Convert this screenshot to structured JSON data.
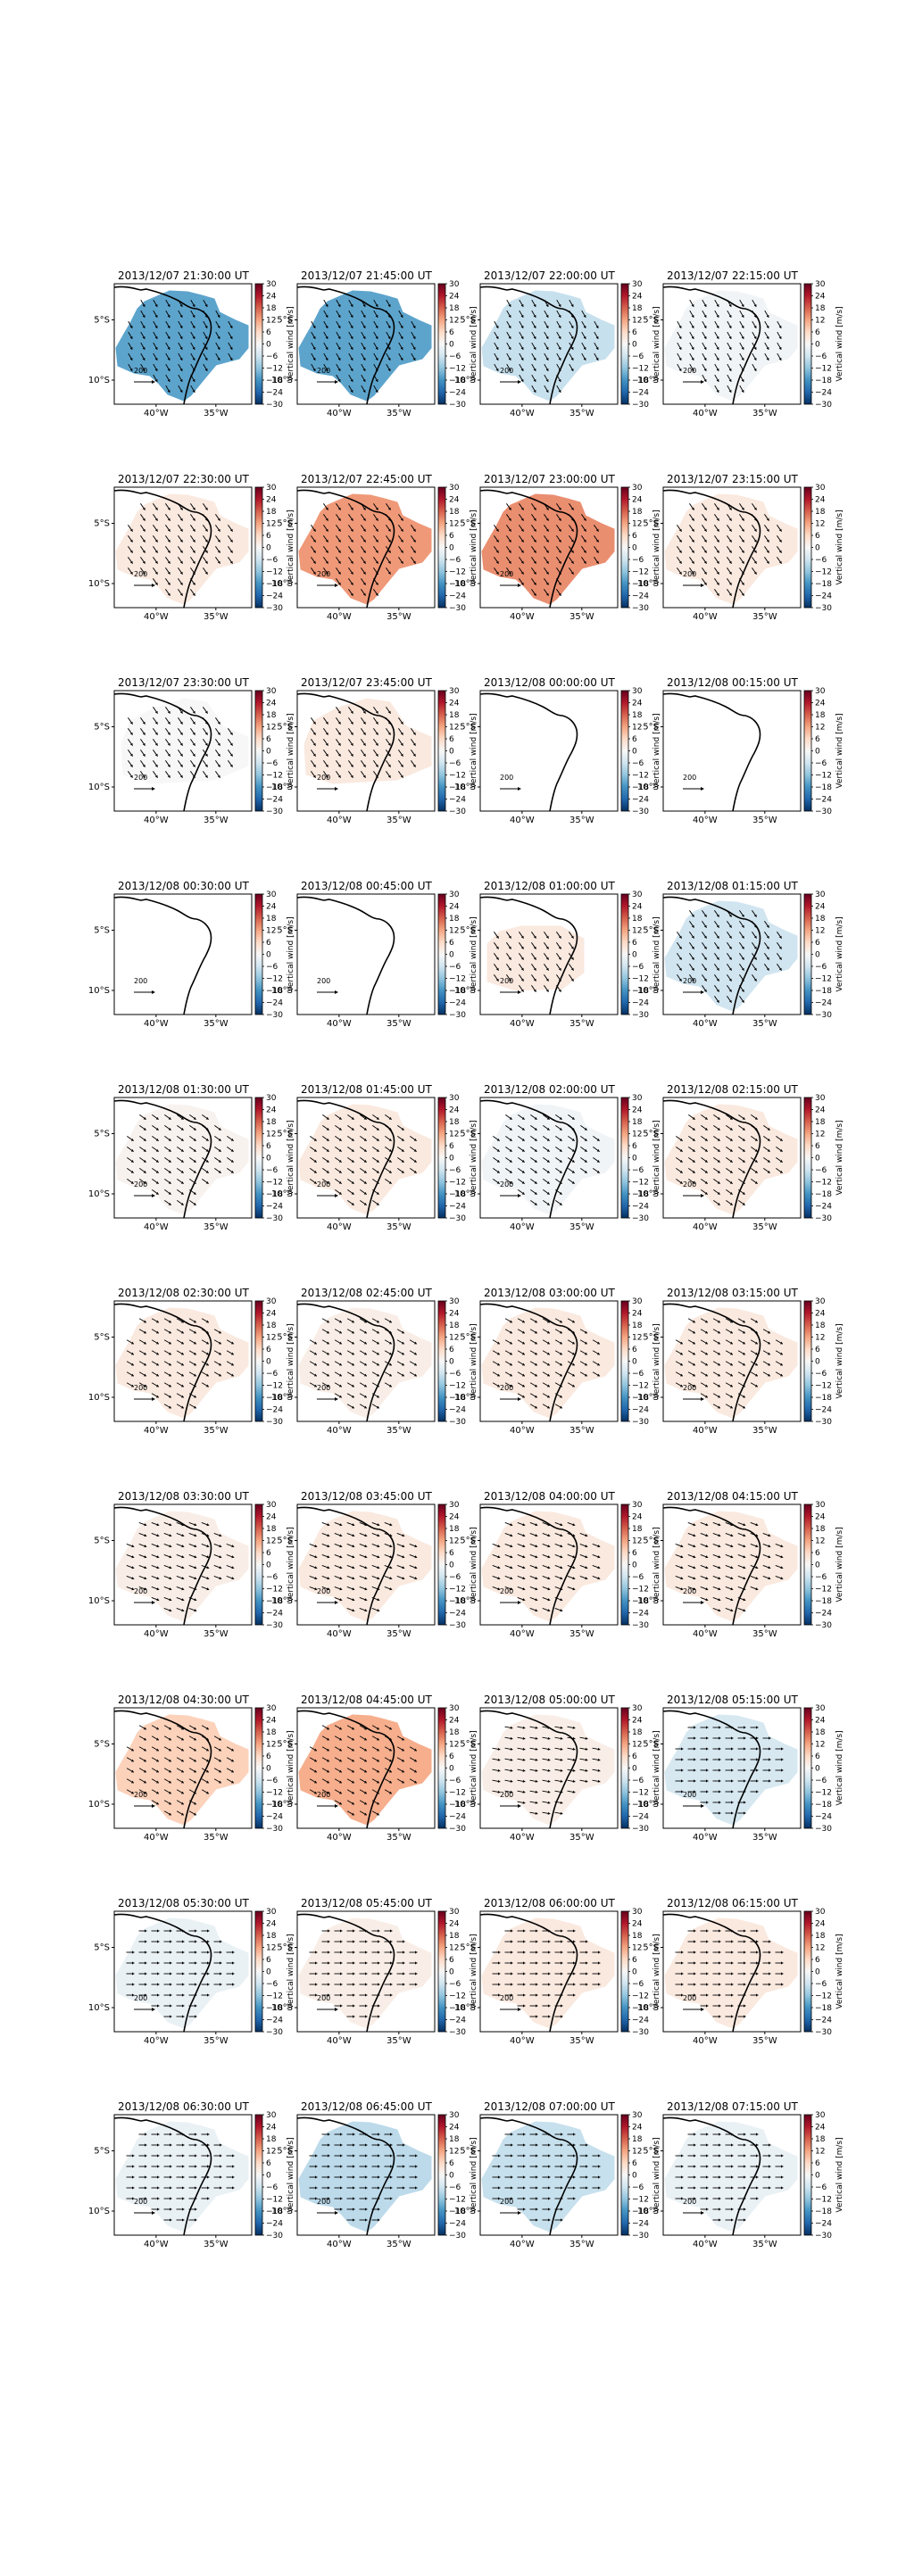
{
  "figure": {
    "colorbar": {
      "label": "Vertical wind [m/s]",
      "ticks": [
        30,
        24,
        18,
        12,
        6,
        0,
        -6,
        -12,
        -18,
        -24,
        -30
      ],
      "range": [
        -30,
        30
      ],
      "colormap": [
        "#053061",
        "#2166ac",
        "#4393c3",
        "#92c5de",
        "#d1e5f0",
        "#f7f7f7",
        "#fddbc7",
        "#f4a582",
        "#d6604d",
        "#b2182b",
        "#67001f"
      ]
    },
    "map_axes": {
      "x_ticks": [
        {
          "lon": -40,
          "label": "40°W"
        },
        {
          "lon": -35,
          "label": "35°W"
        }
      ],
      "y_ticks": [
        {
          "lat": -5,
          "label": "5°S"
        },
        {
          "lat": -10,
          "label": "10°S"
        }
      ],
      "lon_range": [
        -43.5,
        -32.0
      ],
      "lat_range": [
        -12.0,
        -2.0
      ]
    },
    "quiver_key": "200",
    "arrow_color": "#000000",
    "coast_color": "#000000"
  },
  "chart_data": [
    {
      "type": "heatmap",
      "title": "2013/12/07 21:30:00 UT",
      "field_value": -16,
      "wind_dir_deg": 150,
      "coverage": "full"
    },
    {
      "type": "heatmap",
      "title": "2013/12/07 21:45:00 UT",
      "field_value": -16,
      "wind_dir_deg": 150,
      "coverage": "full"
    },
    {
      "type": "heatmap",
      "title": "2013/12/07 22:00:00 UT",
      "field_value": -7,
      "wind_dir_deg": 150,
      "coverage": "full"
    },
    {
      "type": "heatmap",
      "title": "2013/12/07 22:15:00 UT",
      "field_value": -1,
      "wind_dir_deg": 150,
      "coverage": "full"
    },
    {
      "type": "heatmap",
      "title": "2013/12/07 22:30:00 UT",
      "field_value": 3,
      "wind_dir_deg": 145,
      "coverage": "full"
    },
    {
      "type": "heatmap",
      "title": "2013/12/07 22:45:00 UT",
      "field_value": 13,
      "wind_dir_deg": 145,
      "coverage": "full"
    },
    {
      "type": "heatmap",
      "title": "2013/12/07 23:00:00 UT",
      "field_value": 14,
      "wind_dir_deg": 145,
      "coverage": "full"
    },
    {
      "type": "heatmap",
      "title": "2013/12/07 23:15:00 UT",
      "field_value": 3,
      "wind_dir_deg": 145,
      "coverage": "full"
    },
    {
      "type": "heatmap",
      "title": "2013/12/07 23:30:00 UT",
      "field_value": 0,
      "wind_dir_deg": 145,
      "coverage": "north"
    },
    {
      "type": "heatmap",
      "title": "2013/12/07 23:45:00 UT",
      "field_value": 3,
      "wind_dir_deg": 145,
      "coverage": "north"
    },
    {
      "type": "heatmap",
      "title": "2013/12/08 00:00:00 UT",
      "field_value": 0,
      "wind_dir_deg": 0,
      "coverage": "none"
    },
    {
      "type": "heatmap",
      "title": "2013/12/08 00:15:00 UT",
      "field_value": 0,
      "wind_dir_deg": 0,
      "coverage": "none"
    },
    {
      "type": "heatmap",
      "title": "2013/12/08 00:30:00 UT",
      "field_value": 0,
      "wind_dir_deg": 0,
      "coverage": "none"
    },
    {
      "type": "heatmap",
      "title": "2013/12/08 00:45:00 UT",
      "field_value": 0,
      "wind_dir_deg": 0,
      "coverage": "none"
    },
    {
      "type": "heatmap",
      "title": "2013/12/08 01:00:00 UT",
      "field_value": 3,
      "wind_dir_deg": 145,
      "coverage": "west"
    },
    {
      "type": "heatmap",
      "title": "2013/12/08 01:15:00 UT",
      "field_value": -6,
      "wind_dir_deg": 145,
      "coverage": "full"
    },
    {
      "type": "heatmap",
      "title": "2013/12/08 01:30:00 UT",
      "field_value": 1,
      "wind_dir_deg": 125,
      "coverage": "full"
    },
    {
      "type": "heatmap",
      "title": "2013/12/08 01:45:00 UT",
      "field_value": 3,
      "wind_dir_deg": 125,
      "coverage": "full"
    },
    {
      "type": "heatmap",
      "title": "2013/12/08 02:00:00 UT",
      "field_value": -1,
      "wind_dir_deg": 125,
      "coverage": "full"
    },
    {
      "type": "heatmap",
      "title": "2013/12/08 02:15:00 UT",
      "field_value": 3,
      "wind_dir_deg": 125,
      "coverage": "full"
    },
    {
      "type": "heatmap",
      "title": "2013/12/08 02:30:00 UT",
      "field_value": 3,
      "wind_dir_deg": 120,
      "coverage": "full"
    },
    {
      "type": "heatmap",
      "title": "2013/12/08 02:45:00 UT",
      "field_value": 2,
      "wind_dir_deg": 120,
      "coverage": "full"
    },
    {
      "type": "heatmap",
      "title": "2013/12/08 03:00:00 UT",
      "field_value": 3,
      "wind_dir_deg": 120,
      "coverage": "full"
    },
    {
      "type": "heatmap",
      "title": "2013/12/08 03:15:00 UT",
      "field_value": 3,
      "wind_dir_deg": 120,
      "coverage": "full"
    },
    {
      "type": "heatmap",
      "title": "2013/12/08 03:30:00 UT",
      "field_value": 2,
      "wind_dir_deg": 110,
      "coverage": "full"
    },
    {
      "type": "heatmap",
      "title": "2013/12/08 03:45:00 UT",
      "field_value": 3,
      "wind_dir_deg": 110,
      "coverage": "full"
    },
    {
      "type": "heatmap",
      "title": "2013/12/08 04:00:00 UT",
      "field_value": 3,
      "wind_dir_deg": 110,
      "coverage": "full"
    },
    {
      "type": "heatmap",
      "title": "2013/12/08 04:15:00 UT",
      "field_value": 3,
      "wind_dir_deg": 110,
      "coverage": "full"
    },
    {
      "type": "heatmap",
      "title": "2013/12/08 04:30:00 UT",
      "field_value": 7,
      "wind_dir_deg": 120,
      "coverage": "full"
    },
    {
      "type": "heatmap",
      "title": "2013/12/08 04:45:00 UT",
      "field_value": 11,
      "wind_dir_deg": 120,
      "coverage": "full"
    },
    {
      "type": "heatmap",
      "title": "2013/12/08 05:00:00 UT",
      "field_value": 2,
      "wind_dir_deg": 100,
      "coverage": "full"
    },
    {
      "type": "heatmap",
      "title": "2013/12/08 05:15:00 UT",
      "field_value": -5,
      "wind_dir_deg": 90,
      "coverage": "full"
    },
    {
      "type": "heatmap",
      "title": "2013/12/08 05:30:00 UT",
      "field_value": -2,
      "wind_dir_deg": 90,
      "coverage": "full"
    },
    {
      "type": "heatmap",
      "title": "2013/12/08 05:45:00 UT",
      "field_value": 2,
      "wind_dir_deg": 90,
      "coverage": "full"
    },
    {
      "type": "heatmap",
      "title": "2013/12/08 06:00:00 UT",
      "field_value": 3,
      "wind_dir_deg": 90,
      "coverage": "full"
    },
    {
      "type": "heatmap",
      "title": "2013/12/08 06:15:00 UT",
      "field_value": 3,
      "wind_dir_deg": 90,
      "coverage": "full"
    },
    {
      "type": "heatmap",
      "title": "2013/12/08 06:30:00 UT",
      "field_value": -2,
      "wind_dir_deg": 90,
      "coverage": "full"
    },
    {
      "type": "heatmap",
      "title": "2013/12/08 06:45:00 UT",
      "field_value": -8,
      "wind_dir_deg": 90,
      "coverage": "full"
    },
    {
      "type": "heatmap",
      "title": "2013/12/08 07:00:00 UT",
      "field_value": -7,
      "wind_dir_deg": 90,
      "coverage": "full"
    },
    {
      "type": "heatmap",
      "title": "2013/12/08 07:15:00 UT",
      "field_value": -2,
      "wind_dir_deg": 90,
      "coverage": "full"
    }
  ]
}
